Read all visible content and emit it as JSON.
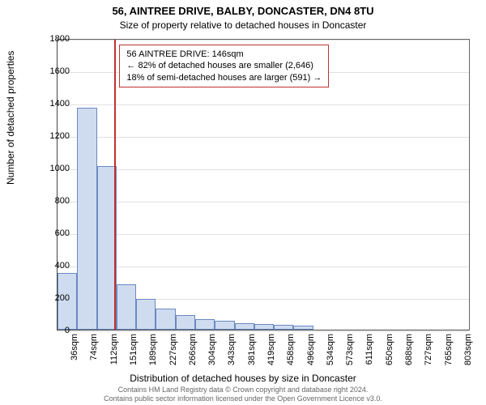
{
  "chart": {
    "type": "histogram",
    "title": "56, AINTREE DRIVE, BALBY, DONCASTER, DN4 8TU",
    "subtitle": "Size of property relative to detached houses in Doncaster",
    "title_fontsize": 13,
    "subtitle_fontsize": 12,
    "background_color": "#ffffff",
    "plot_border_color": "#666666",
    "grid_color": "#e0e0e0",
    "ylabel": "Number of detached properties",
    "xlabel": "Distribution of detached houses by size in Doncaster",
    "axis_label_fontsize": 12,
    "tick_fontsize": 11,
    "ylim": [
      0,
      1800
    ],
    "yticks": [
      0,
      200,
      400,
      600,
      800,
      1000,
      1200,
      1400,
      1600,
      1800
    ],
    "xticks": [
      "36sqm",
      "74sqm",
      "112sqm",
      "151sqm",
      "189sqm",
      "227sqm",
      "266sqm",
      "304sqm",
      "343sqm",
      "381sqm",
      "419sqm",
      "458sqm",
      "496sqm",
      "534sqm",
      "573sqm",
      "611sqm",
      "650sqm",
      "688sqm",
      "727sqm",
      "765sqm",
      "803sqm"
    ],
    "bar_values": [
      350,
      1370,
      1010,
      280,
      190,
      130,
      90,
      65,
      55,
      40,
      35,
      30,
      25,
      0,
      0,
      0,
      0,
      0,
      0,
      0,
      0
    ],
    "bar_fill": "#cfdcf0",
    "bar_stroke": "#6a89c0",
    "bar_width_ratio": 1.0,
    "reference": {
      "x_category_index": 2.9,
      "color": "#c23030",
      "label_lines": [
        "56 AINTREE DRIVE: 146sqm",
        "← 82% of detached houses are smaller (2,646)",
        "18% of semi-detached houses are larger (591) →"
      ],
      "label_fontsize": 11,
      "label_border_color": "#c23030"
    }
  },
  "footer": {
    "line1": "Contains HM Land Registry data © Crown copyright and database right 2024.",
    "line2": "Contains public sector information licensed under the Open Government Licence v3.0.",
    "fontsize": 9
  }
}
